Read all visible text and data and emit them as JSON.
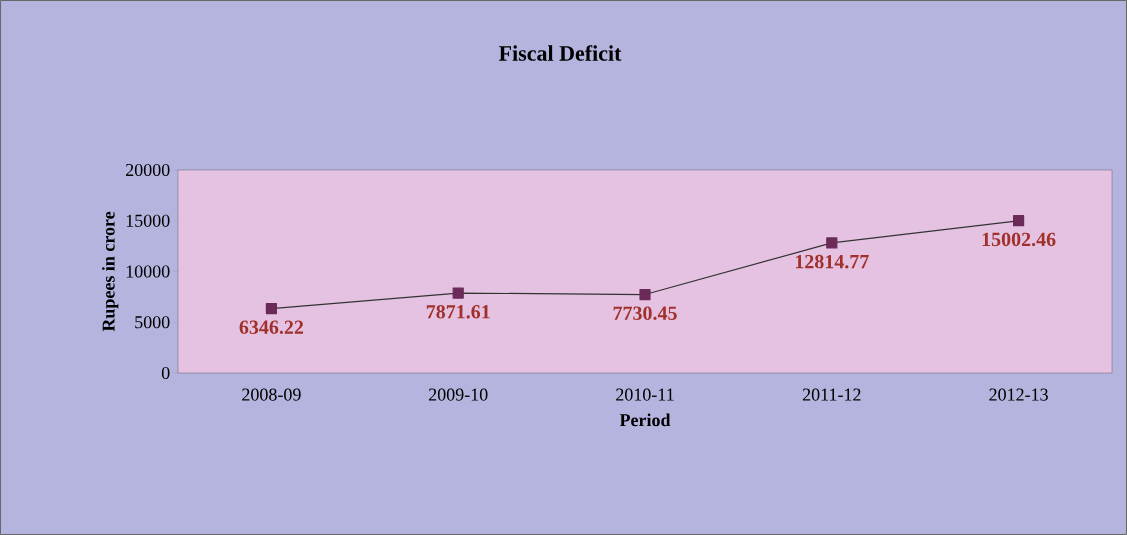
{
  "chart_data": {
    "type": "line",
    "title": "Fiscal Deficit",
    "xlabel": "Period",
    "ylabel": "Rupees in crore",
    "categories": [
      "2008-09",
      "2009-10",
      "2010-11",
      "2011-12",
      "2012-13"
    ],
    "values": [
      6346.22,
      7871.61,
      7730.45,
      12814.77,
      15002.46
    ],
    "color": "#6b2a5a",
    "marker": "square",
    "data_labels": true,
    "ylim": [
      0,
      20000
    ],
    "yticks": [
      0,
      5000,
      10000,
      15000,
      20000
    ]
  }
}
